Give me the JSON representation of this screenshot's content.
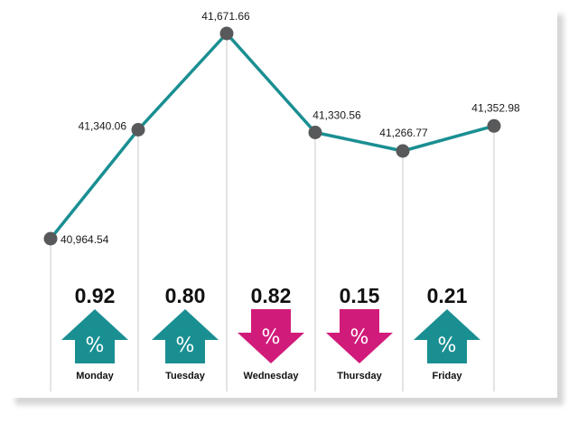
{
  "chart_data": {
    "type": "line",
    "title": "",
    "xlabel": "",
    "ylabel": "",
    "categories": [
      "Monday",
      "Tuesday",
      "Wednesday",
      "Thursday",
      "Friday"
    ],
    "points": [
      {
        "label": "40,964.54",
        "value": 40964.54
      },
      {
        "label": "41,340.06",
        "value": 41340.06
      },
      {
        "label": "41,671.66",
        "value": 41671.66
      },
      {
        "label": "41,330.56",
        "value": 41330.56
      },
      {
        "label": "41,266.77",
        "value": 41266.77
      },
      {
        "label": "41,352.98",
        "value": 41352.98
      }
    ],
    "daily_change": [
      {
        "day": "Monday",
        "percent": "0.92",
        "direction": "up"
      },
      {
        "day": "Tuesday",
        "percent": "0.80",
        "direction": "up"
      },
      {
        "day": "Wednesday",
        "percent": "0.82",
        "direction": "down"
      },
      {
        "day": "Thursday",
        "percent": "0.15",
        "direction": "down"
      },
      {
        "day": "Friday",
        "percent": "0.21",
        "direction": "up"
      }
    ],
    "percent_symbol": "%",
    "colors": {
      "line": "#1a8f92",
      "marker": "#58595b",
      "up": "#1a8f92",
      "down": "#d11b7a",
      "gridline": "#c8c8c8"
    }
  }
}
